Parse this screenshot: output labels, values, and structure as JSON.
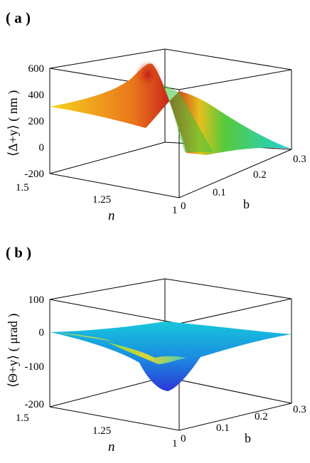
{
  "chart_data": [
    {
      "panel": "( a )",
      "type": "surface",
      "zlabel": "⟨Δ+y⟩ ( nm )",
      "xlabel": "n",
      "ylabel": "b",
      "zlim": [
        -200,
        600
      ],
      "z_ticks": [
        "600",
        "400",
        "200",
        "0",
        "-200"
      ],
      "n_ticks": [
        "1.5",
        "1.25",
        "1"
      ],
      "b_ticks": [
        "0",
        "0.1",
        "0.2",
        "0.3"
      ],
      "nlim": [
        1.0,
        1.5
      ],
      "blim": [
        0,
        0.3
      ],
      "surface_samples": [
        {
          "n": 1.5,
          "b": 0.0,
          "z": 290
        },
        {
          "n": 1.25,
          "b": 0.0,
          "z": 400
        },
        {
          "n": 1.0,
          "b": 0.0,
          "z": 10
        },
        {
          "n": 1.0,
          "b": 0.05,
          "z": 590
        },
        {
          "n": 1.0,
          "b": 0.1,
          "z": 120
        },
        {
          "n": 1.0,
          "b": 0.3,
          "z": 0
        },
        {
          "n": 1.5,
          "b": 0.3,
          "z": 0
        }
      ]
    },
    {
      "panel": "( b )",
      "type": "surface",
      "zlabel": "⟨Θ+y⟩ ( μrad )",
      "xlabel": "n",
      "ylabel": "b",
      "zlim": [
        -200,
        100
      ],
      "z_ticks": [
        "100",
        "0",
        "-100",
        "-200"
      ],
      "n_ticks": [
        "1.5",
        "1.25",
        "1"
      ],
      "b_ticks": [
        "0",
        "0.1",
        "0.2",
        "0.3"
      ],
      "nlim": [
        1.0,
        1.5
      ],
      "blim": [
        0,
        0.3
      ],
      "surface_samples": [
        {
          "n": 1.5,
          "b": 0.0,
          "z": 0
        },
        {
          "n": 1.25,
          "b": 0.0,
          "z": -20
        },
        {
          "n": 1.0,
          "b": 0.0,
          "z": -2
        },
        {
          "n": 1.0,
          "b": 0.05,
          "z": -165
        },
        {
          "n": 1.0,
          "b": 0.1,
          "z": -80
        },
        {
          "n": 1.0,
          "b": 0.3,
          "z": 0
        },
        {
          "n": 1.5,
          "b": 0.3,
          "z": 0
        }
      ]
    }
  ],
  "colors": {
    "surface_high": "#d42a12",
    "surface_mid": "#f2c21a",
    "surface_green": "#3fc23a",
    "surface_cyan": "#19d3d6",
    "surface_blue": "#1e8ce0",
    "surface_deep": "#2a3ad8"
  }
}
